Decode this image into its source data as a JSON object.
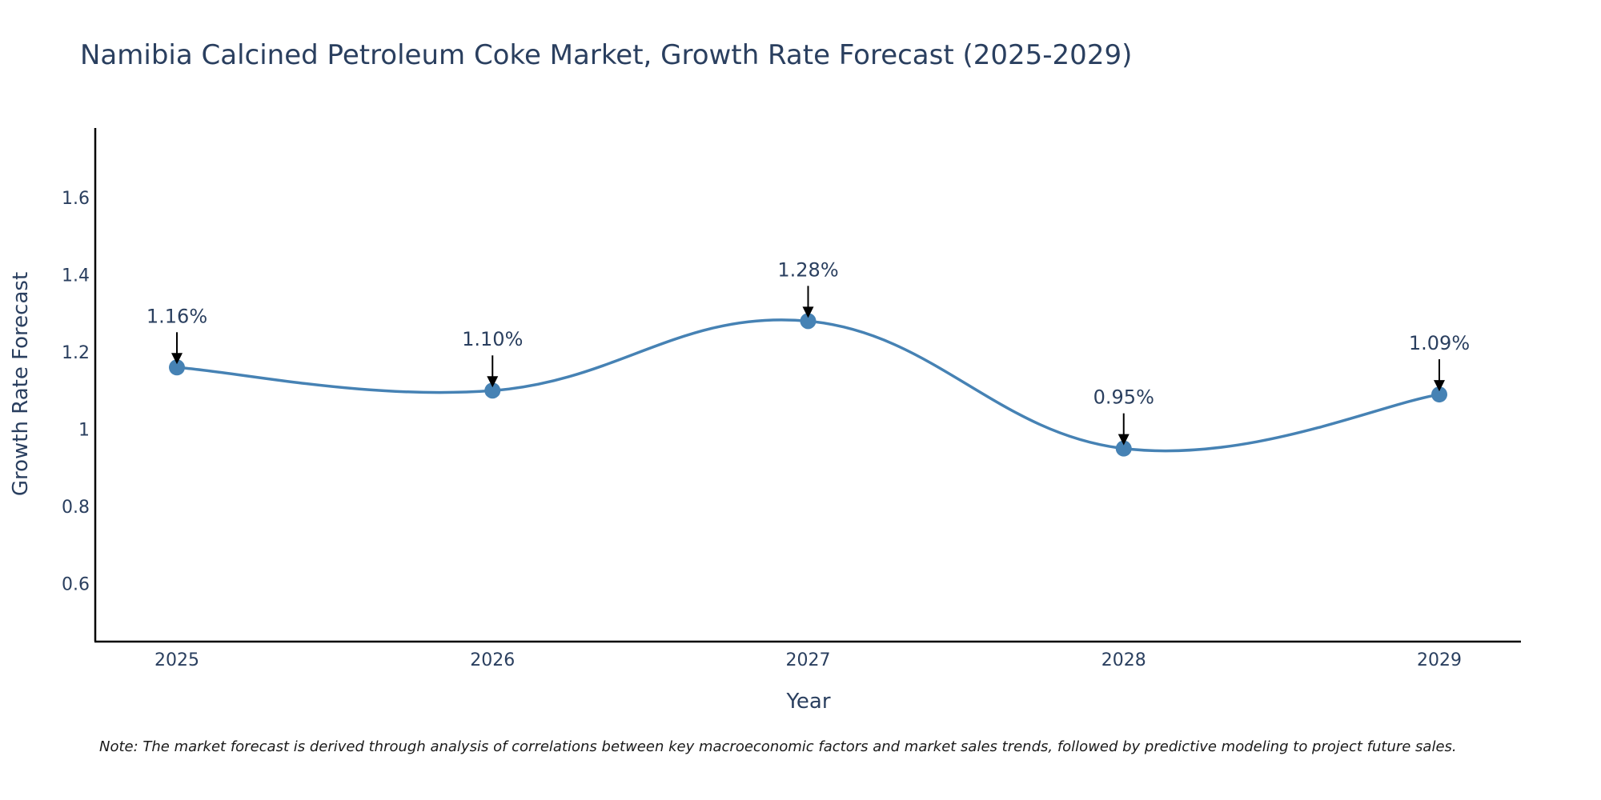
{
  "chart_data": {
    "type": "line",
    "title": "Namibia Calcined Petroleum Coke Market, Growth Rate Forecast (2025-2029)",
    "xlabel": "Year",
    "ylabel": "Growth Rate Forecast",
    "categories": [
      "2025",
      "2026",
      "2027",
      "2028",
      "2029"
    ],
    "values": [
      1.16,
      1.1,
      1.28,
      0.95,
      1.09
    ],
    "data_labels": [
      "1.16%",
      "1.10%",
      "1.28%",
      "0.95%",
      "1.09%"
    ],
    "ylim": [
      0.45,
      1.78
    ],
    "yticks": [
      0.6,
      0.8,
      1.0,
      1.2,
      1.4,
      1.6
    ],
    "ytick_labels": [
      "0.6",
      "0.8",
      "1",
      "1.2",
      "1.4",
      "1.6"
    ],
    "line_color": "#4682b4",
    "marker_color": "#4682b4",
    "annotation_color": "#000000",
    "grid": false,
    "curve": "spline"
  },
  "note": "Note: The market forecast is derived through analysis of correlations between key macroeconomic factors and market sales trends, followed by predictive modeling to project future sales."
}
